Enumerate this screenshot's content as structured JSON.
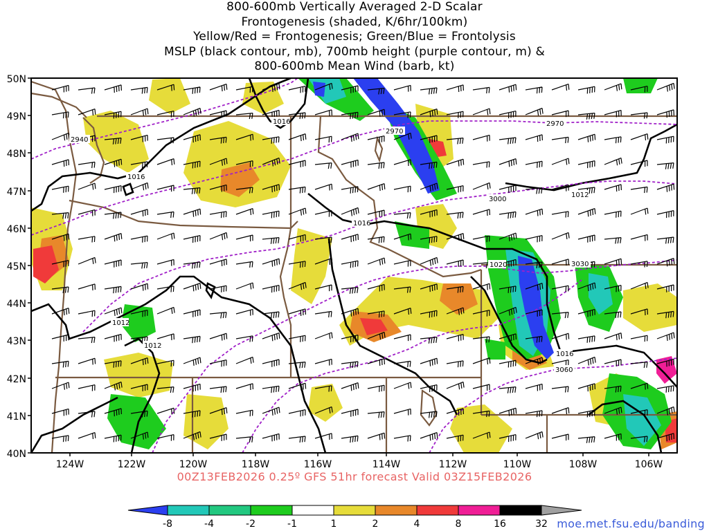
{
  "title": {
    "lines": [
      "800-600mb Vertically Averaged 2-D Scalar",
      "Frontogenesis (shaded, K/6hr/100km)",
      "Yellow/Red = Frontogenesis;  Green/Blue = Frontolysis",
      "MSLP (black contour, mb), 700mb height (purple contour, m) &",
      "800-600mb Mean Wind (barb, kt)"
    ]
  },
  "axes": {
    "lat_labels": [
      "50N",
      "49N",
      "48N",
      "47N",
      "46N",
      "45N",
      "44N",
      "43N",
      "42N",
      "41N",
      "40N"
    ],
    "lon_labels": [
      "124W",
      "122W",
      "120W",
      "118W",
      "116W",
      "114W",
      "112W",
      "110W",
      "108W",
      "106W"
    ],
    "lat_range": [
      40,
      50
    ],
    "lon_range": [
      -125,
      -105
    ]
  },
  "contour_labels": {
    "mslp": [
      "1016",
      "1016",
      "1016",
      "1012",
      "1012",
      "1012",
      "1020",
      "1016"
    ],
    "height": [
      "2940",
      "2970",
      "2970",
      "3000",
      "3030",
      "3060"
    ]
  },
  "colorbar": {
    "labels": [
      "-8",
      "-4",
      "-2",
      "-1",
      "1",
      "2",
      "4",
      "8",
      "16",
      "32"
    ],
    "colors": [
      "#2b3ff0",
      "#22c8b8",
      "#22c880",
      "#1ecc1e",
      "#ffffff",
      "#e6dc3a",
      "#e8882a",
      "#f03a3a",
      "#f01e96",
      "#000000",
      "#a0a0a0"
    ]
  },
  "colors": {
    "mslp_contour": "#000000",
    "height_contour": "#a020c8",
    "borders": "#7a5a40",
    "barbs": "#000000"
  },
  "caption": "00Z13FEB2026 0.25º GFS 51hr forecast Valid 03Z15FEB2026",
  "credit": "moe.met.fsu.edu/banding"
}
